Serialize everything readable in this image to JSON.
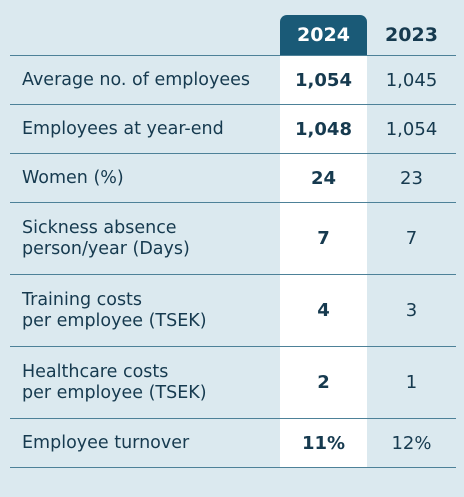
{
  "header": {
    "col_2024": "2024",
    "col_2023": "2023"
  },
  "rows": [
    {
      "label_lines": [
        "Average no. of employees"
      ],
      "v2024": "1,054",
      "v2023": "1,045"
    },
    {
      "label_lines": [
        "Employees at year-end"
      ],
      "v2024": "1,048",
      "v2023": "1,054"
    },
    {
      "label_lines": [
        "Women (%)"
      ],
      "v2024": "24",
      "v2023": "23"
    },
    {
      "label_lines": [
        "Sickness absence",
        "person/year (Days)"
      ],
      "v2024": "7",
      "v2023": "7"
    },
    {
      "label_lines": [
        "Training costs",
        "per employee (TSEK)"
      ],
      "v2024": "4",
      "v2023": "3"
    },
    {
      "label_lines": [
        "Healthcare costs",
        "per employee (TSEK)"
      ],
      "v2024": "2",
      "v2023": "1"
    },
    {
      "label_lines": [
        "Employee turnover"
      ],
      "v2024": "11%",
      "v2023": "12%"
    }
  ],
  "colors": {
    "background": "#dbe9ef",
    "header_2024": "#1a5a77",
    "column_2024": "#ffffff",
    "text": "#163a4f",
    "rule": "#4d8198"
  }
}
